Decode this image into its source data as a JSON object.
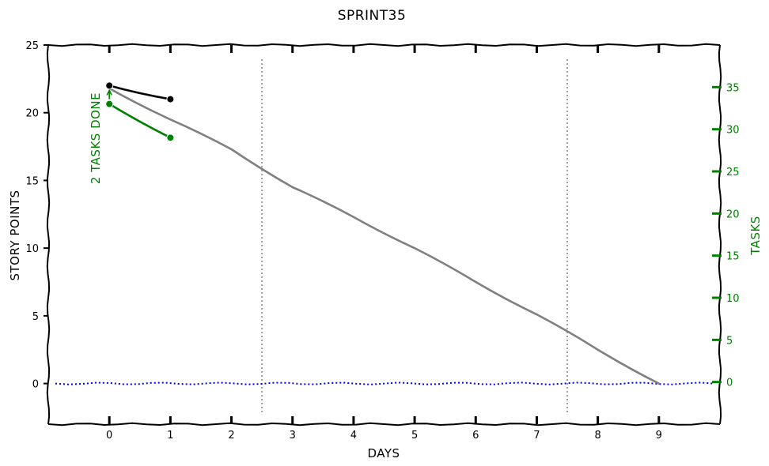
{
  "chart_data": {
    "type": "line",
    "title": "SPRINT35",
    "xlabel": "DAYS",
    "ylabel": "STORY POINTS",
    "y2label": "TASKS",
    "annotation": "2 TASKS DONE",
    "xlim": [
      -1,
      10
    ],
    "ylim": [
      -3,
      25
    ],
    "y2lim": [
      -5,
      40
    ],
    "x_ticks": [
      0,
      1,
      2,
      3,
      4,
      5,
      6,
      7,
      8,
      9
    ],
    "y_ticks": [
      0,
      5,
      10,
      15,
      20,
      25
    ],
    "y2_ticks": [
      0,
      5,
      10,
      15,
      20,
      25,
      30,
      35
    ],
    "vlines_x": [
      2.5,
      7.5
    ],
    "hline_y": 0,
    "series": [
      {
        "axis": "left",
        "color": "#808080",
        "style": "solid",
        "marker": "none",
        "x": [
          0,
          1,
          2,
          3,
          4,
          5,
          6,
          7,
          8,
          9
        ],
        "values": [
          21.8,
          19.5,
          17.3,
          14.5,
          12.3,
          10,
          7.5,
          5.1,
          2.5,
          0
        ]
      },
      {
        "axis": "left",
        "color": "#000000",
        "style": "solid",
        "marker": "circle",
        "x": [
          0,
          1
        ],
        "values": [
          22,
          21
        ]
      },
      {
        "axis": "right",
        "color": "#008000",
        "style": "solid",
        "marker": "circle",
        "x": [
          0,
          1
        ],
        "values": [
          33,
          29
        ]
      }
    ],
    "colors": {
      "axis": "#000000",
      "right_axis": "#008000",
      "ideal": "#808080",
      "vlines": "#a0a0a0",
      "hline": "#0000ff"
    }
  }
}
